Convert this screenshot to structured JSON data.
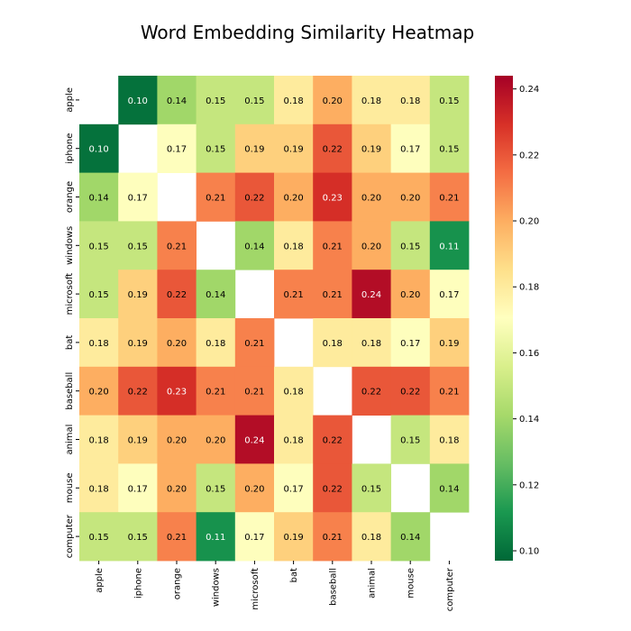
{
  "chart_data": {
    "type": "heatmap",
    "title": "Word Embedding Similarity Heatmap",
    "xlabel": "",
    "ylabel": "",
    "labels": [
      "apple",
      "iphone",
      "orange",
      "windows",
      "microsoft",
      "bat",
      "baseball",
      "animal",
      "mouse",
      "computer"
    ],
    "matrix": [
      [
        null,
        0.1,
        0.14,
        0.15,
        0.15,
        0.18,
        0.2,
        0.18,
        0.18,
        0.15
      ],
      [
        0.1,
        null,
        0.17,
        0.15,
        0.19,
        0.19,
        0.22,
        0.19,
        0.17,
        0.15
      ],
      [
        0.14,
        0.17,
        null,
        0.21,
        0.22,
        0.2,
        0.23,
        0.2,
        0.2,
        0.21
      ],
      [
        0.15,
        0.15,
        0.21,
        null,
        0.14,
        0.18,
        0.21,
        0.2,
        0.15,
        0.11
      ],
      [
        0.15,
        0.19,
        0.22,
        0.14,
        null,
        0.21,
        0.21,
        0.24,
        0.2,
        0.17
      ],
      [
        0.18,
        0.19,
        0.2,
        0.18,
        0.21,
        null,
        0.18,
        0.18,
        0.17,
        0.19
      ],
      [
        0.2,
        0.22,
        0.23,
        0.21,
        0.21,
        0.18,
        null,
        0.22,
        0.22,
        0.21
      ],
      [
        0.18,
        0.19,
        0.2,
        0.2,
        0.24,
        0.18,
        0.22,
        null,
        0.15,
        0.18
      ],
      [
        0.18,
        0.17,
        0.2,
        0.15,
        0.2,
        0.17,
        0.22,
        0.15,
        null,
        0.14
      ],
      [
        0.15,
        0.15,
        0.21,
        0.11,
        0.17,
        0.19,
        0.21,
        0.18,
        0.14,
        null
      ]
    ],
    "colormap": "RdYlGn_r",
    "colorbar": {
      "range": [
        0.097,
        0.244
      ],
      "ticks": [
        "0.10",
        "0.12",
        "0.14",
        "0.16",
        "0.18",
        "0.20",
        "0.22",
        "0.24"
      ],
      "tick_values": [
        0.1,
        0.12,
        0.14,
        0.16,
        0.18,
        0.2,
        0.22,
        0.24
      ]
    },
    "cell_values_shown": true,
    "value_format": "0.00",
    "diagonal_masked": true
  }
}
